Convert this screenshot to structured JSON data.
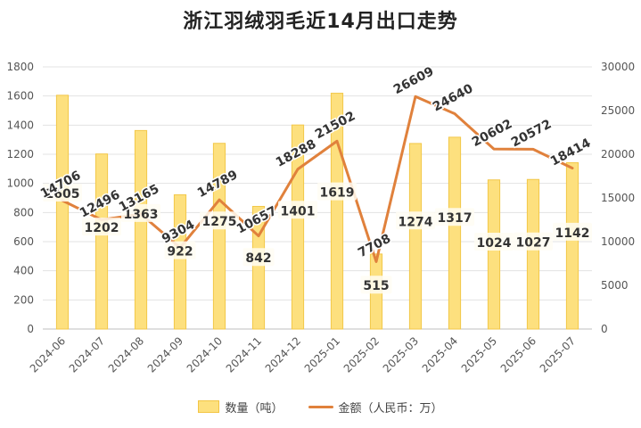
{
  "chart_data": {
    "type": "bar+line",
    "title": "浙江羽绒羽毛近14月出口走势",
    "categories": [
      "2024-06",
      "2024-07",
      "2024-08",
      "2024-09",
      "2024-10",
      "2024-11",
      "2024-12",
      "2025-01",
      "2025-02",
      "2025-03",
      "2025-04",
      "2025-05",
      "2025-06",
      "2025-07"
    ],
    "series": [
      {
        "name": "数量（吨）",
        "type": "bar",
        "axis": "left",
        "color": "#fde07e",
        "values": [
          1605,
          1202,
          1363,
          922,
          1275,
          842,
          1401,
          1619,
          515,
          1274,
          1317,
          1024,
          1027,
          1142
        ]
      },
      {
        "name": "金额（人民币：万）",
        "type": "line",
        "axis": "right",
        "color": "#e0813c",
        "values": [
          14706,
          12496,
          13165,
          9304,
          14789,
          10657,
          18288,
          21502,
          7708,
          26609,
          24640,
          20602,
          20572,
          18414
        ]
      }
    ],
    "y_left": {
      "min": 0,
      "max": 1800,
      "ticks": [
        "0",
        "200",
        "400",
        "600",
        "800",
        "1000",
        "1200",
        "1400",
        "1600",
        "1800"
      ]
    },
    "y_right": {
      "min": 0,
      "max": 30000,
      "ticks": [
        "0",
        "5000",
        "10000",
        "15000",
        "20000",
        "25000",
        "30000"
      ]
    },
    "grid": true,
    "legend_position": "bottom"
  }
}
